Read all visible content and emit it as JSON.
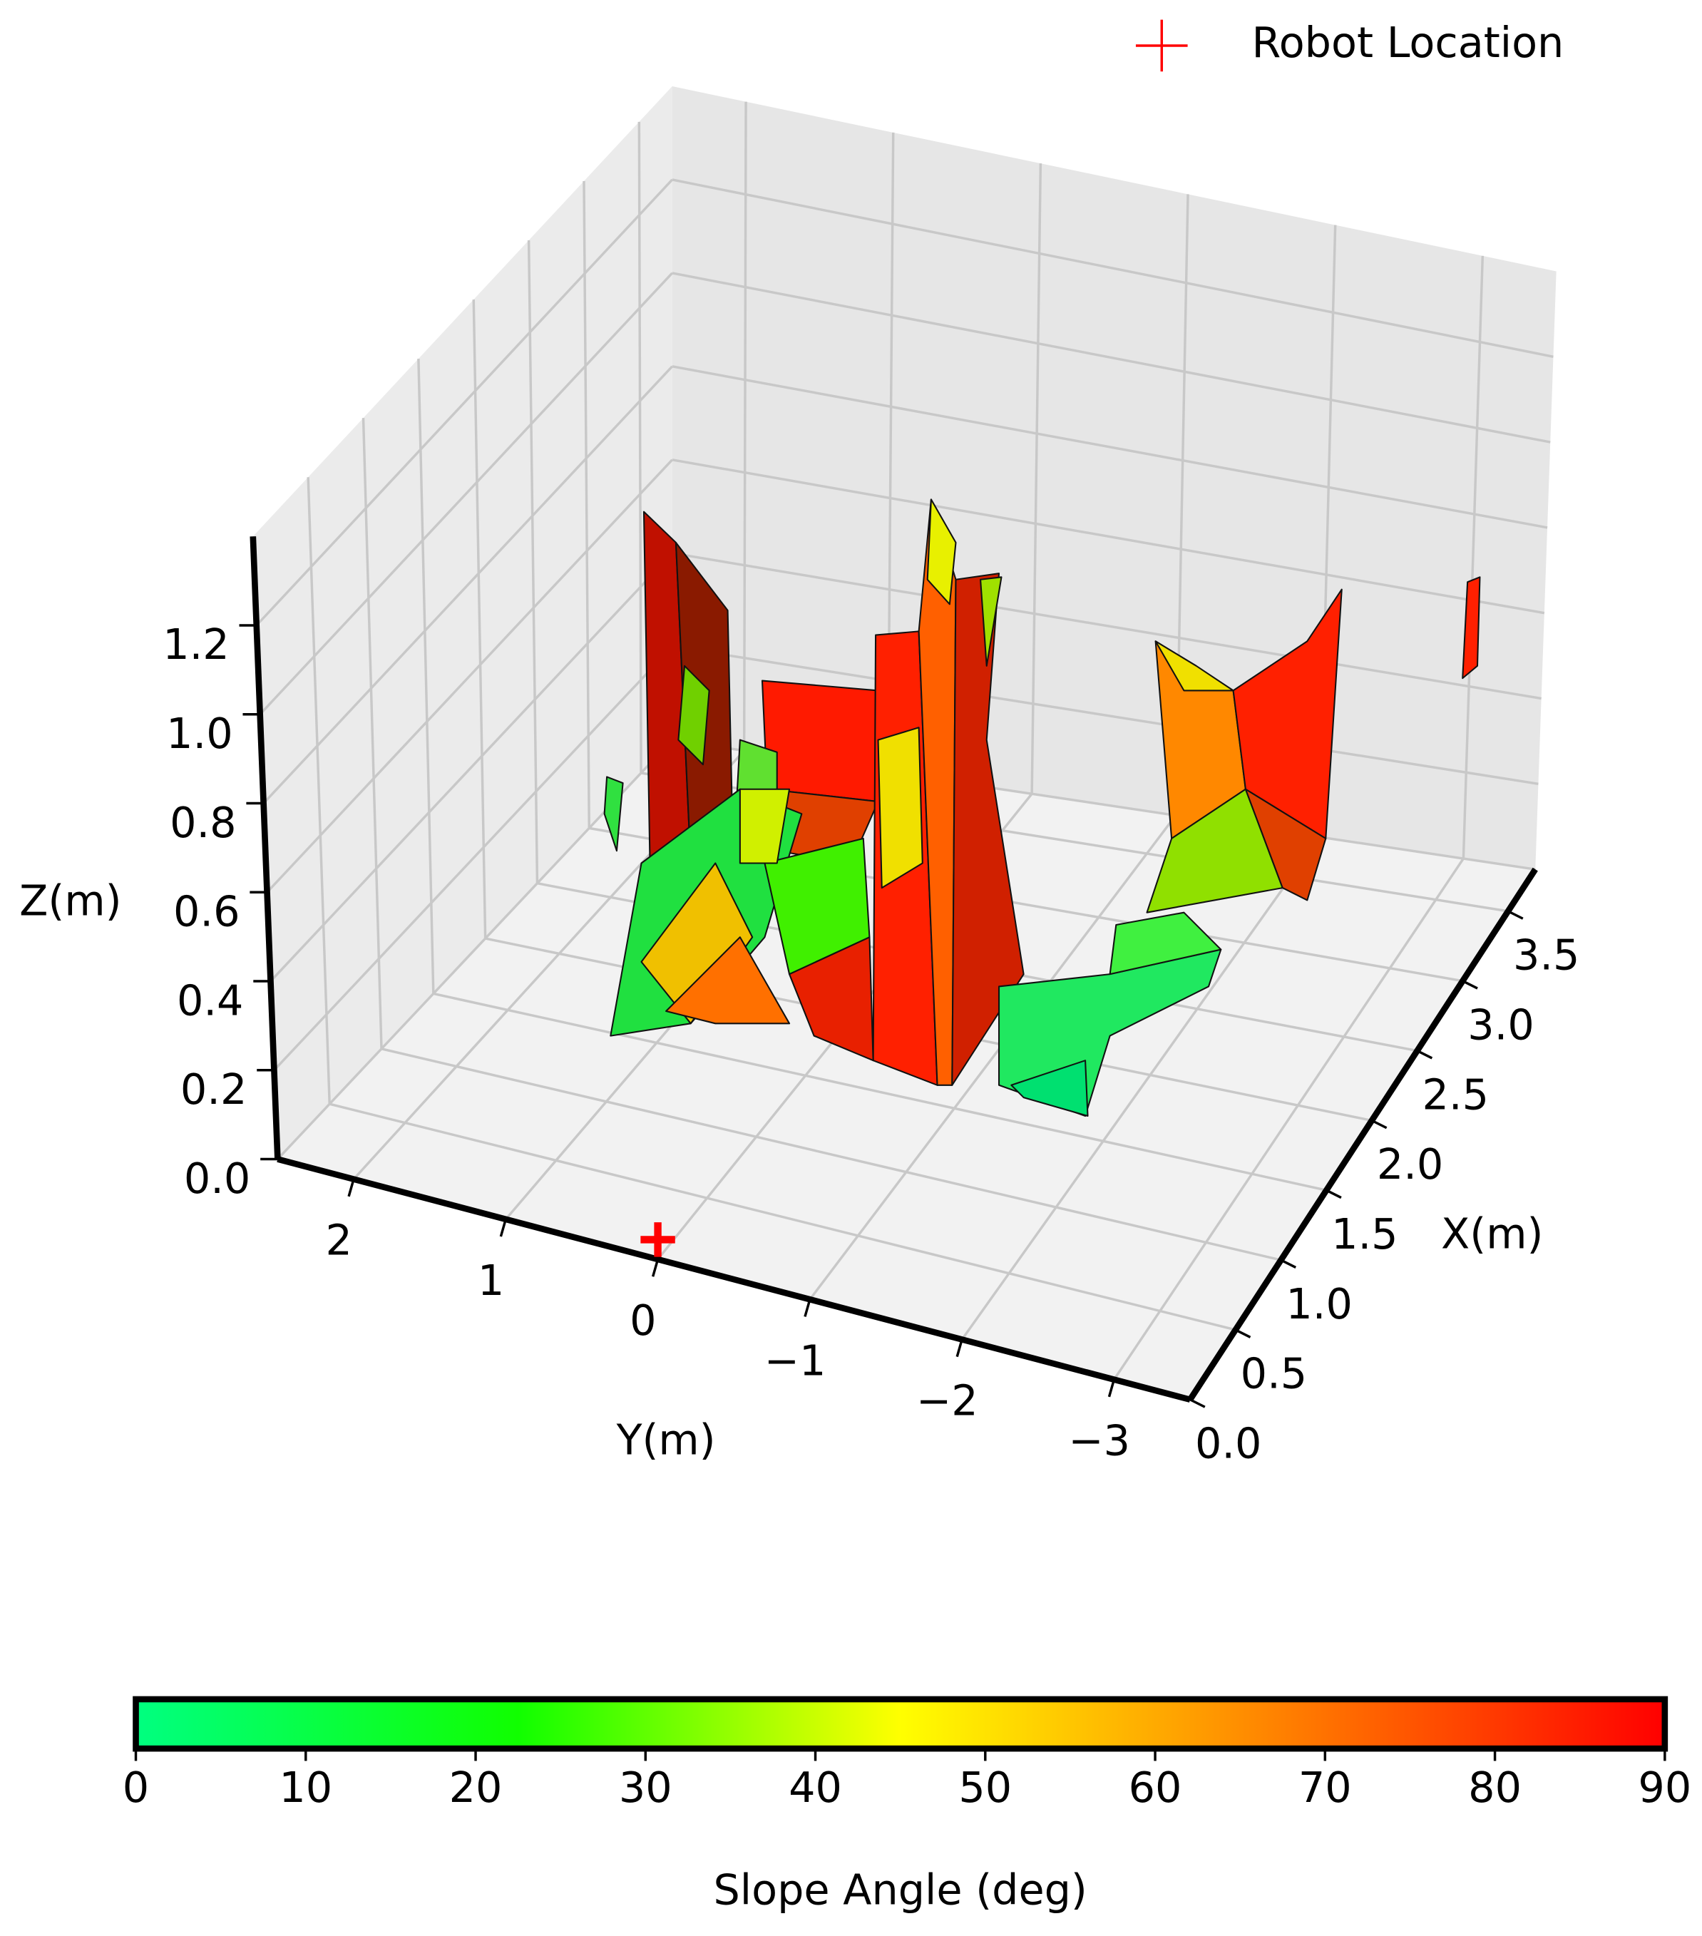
{
  "chart_data": {
    "type": "surface3d",
    "xlabel": "X(m)",
    "ylabel": "Y(m)",
    "zlabel": "Z(m)",
    "xlim": [
      0,
      3.8
    ],
    "ylim": [
      -3.5,
      2.5
    ],
    "zlim": [
      0,
      1.4
    ],
    "xticks": [
      {
        "value": 0,
        "label": "0.0"
      },
      0.5,
      {
        "value": 1,
        "label": "1.0"
      },
      1.5,
      {
        "value": 2,
        "label": "2.0"
      },
      2.5,
      {
        "value": 3,
        "label": "3.0"
      },
      3.5
    ],
    "yticks": [
      2,
      1,
      0,
      {
        "value": -1,
        "label": "−1"
      },
      {
        "value": -2,
        "label": "−2"
      },
      {
        "value": -3,
        "label": "−3"
      }
    ],
    "zticks": [
      {
        "value": 0,
        "label": "0.0"
      },
      0.2,
      0.4,
      0.6,
      0.8,
      {
        "value": 1,
        "label": "1.0"
      },
      1.2
    ],
    "grid": true,
    "series": [
      {
        "name": "Robot Location",
        "color": "#ff0000",
        "x": [
          0
        ],
        "y": [
          0
        ],
        "z": [
          0
        ]
      }
    ],
    "legend": "upper right",
    "colorbar": {
      "label": "Slope Angle (deg)",
      "lim": [
        0,
        90
      ],
      "ticks": [
        0,
        10,
        20,
        30,
        40,
        50,
        60,
        70,
        80,
        90
      ],
      "colors": [
        "#00ff80",
        "#10ff00",
        "#ffff00",
        "#ff8000",
        "#ff0000"
      ]
    }
  }
}
